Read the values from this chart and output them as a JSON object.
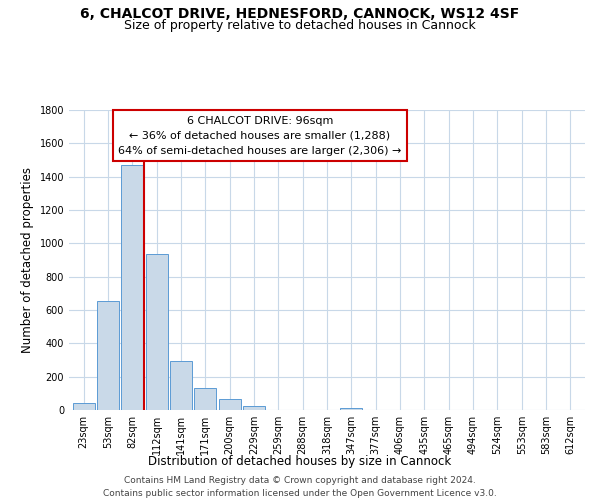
{
  "title": "6, CHALCOT DRIVE, HEDNESFORD, CANNOCK, WS12 4SF",
  "subtitle": "Size of property relative to detached houses in Cannock",
  "xlabel": "Distribution of detached houses by size in Cannock",
  "ylabel": "Number of detached properties",
  "bar_labels": [
    "23sqm",
    "53sqm",
    "82sqm",
    "112sqm",
    "141sqm",
    "171sqm",
    "200sqm",
    "229sqm",
    "259sqm",
    "288sqm",
    "318sqm",
    "347sqm",
    "377sqm",
    "406sqm",
    "435sqm",
    "465sqm",
    "494sqm",
    "524sqm",
    "553sqm",
    "583sqm",
    "612sqm"
  ],
  "bar_values": [
    40,
    655,
    1470,
    935,
    295,
    130,
    65,
    22,
    3,
    0,
    0,
    13,
    0,
    0,
    0,
    0,
    0,
    0,
    0,
    0,
    0
  ],
  "bar_color": "#c9d9e8",
  "bar_edge_color": "#5b9bd5",
  "vline_x": 2.5,
  "vline_color": "#cc0000",
  "annotation_text": "6 CHALCOT DRIVE: 96sqm\n← 36% of detached houses are smaller (1,288)\n64% of semi-detached houses are larger (2,306) →",
  "annotation_box_color": "#ffffff",
  "annotation_box_edge": "#cc0000",
  "ylim": [
    0,
    1800
  ],
  "yticks": [
    0,
    200,
    400,
    600,
    800,
    1000,
    1200,
    1400,
    1600,
    1800
  ],
  "footnote": "Contains HM Land Registry data © Crown copyright and database right 2024.\nContains public sector information licensed under the Open Government Licence v3.0.",
  "bg_color": "#ffffff",
  "grid_color": "#c8d8e8",
  "title_fontsize": 10,
  "subtitle_fontsize": 9,
  "axis_label_fontsize": 8.5,
  "tick_fontsize": 7,
  "annotation_fontsize": 8,
  "footnote_fontsize": 6.5
}
